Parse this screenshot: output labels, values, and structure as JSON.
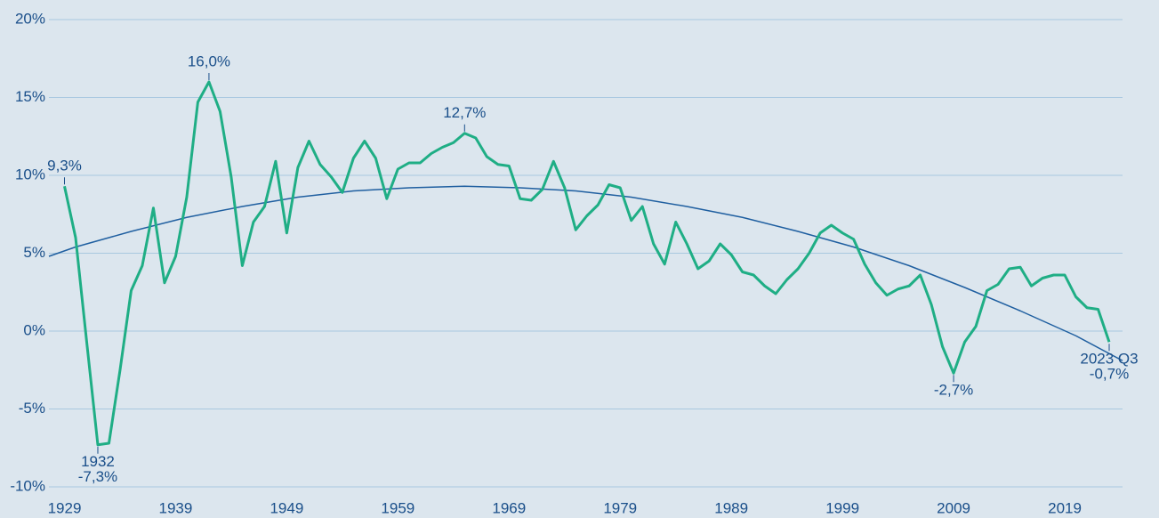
{
  "chart_data": {
    "type": "line",
    "x": [
      1929,
      1930,
      1931,
      1932,
      1933,
      1934,
      1935,
      1936,
      1937,
      1938,
      1939,
      1940,
      1941,
      1942,
      1943,
      1944,
      1945,
      1946,
      1947,
      1948,
      1949,
      1950,
      1951,
      1952,
      1953,
      1954,
      1955,
      1956,
      1957,
      1958,
      1959,
      1960,
      1961,
      1962,
      1963,
      1964,
      1965,
      1966,
      1967,
      1968,
      1969,
      1970,
      1971,
      1972,
      1973,
      1974,
      1975,
      1976,
      1977,
      1978,
      1979,
      1980,
      1981,
      1982,
      1983,
      1984,
      1985,
      1986,
      1987,
      1988,
      1989,
      1990,
      1991,
      1992,
      1993,
      1994,
      1995,
      1996,
      1997,
      1998,
      1999,
      2000,
      2001,
      2002,
      2003,
      2004,
      2005,
      2006,
      2007,
      2008,
      2009,
      2010,
      2011,
      2012,
      2013,
      2014,
      2015,
      2016,
      2017,
      2018,
      2019,
      2020,
      2021,
      2022,
      2023
    ],
    "series": [
      {
        "color": "#1fae85",
        "values": [
          9.3,
          6.0,
          -0.7,
          -7.3,
          -7.2,
          -2.5,
          2.6,
          4.2,
          7.9,
          3.1,
          4.8,
          8.6,
          14.7,
          16.0,
          14.1,
          9.9,
          4.2,
          7.0,
          8.0,
          10.9,
          6.3,
          10.5,
          12.2,
          10.7,
          9.9,
          8.9,
          11.1,
          12.2,
          11.1,
          8.5,
          10.4,
          10.8,
          10.8,
          11.4,
          11.8,
          12.1,
          12.7,
          12.4,
          11.2,
          10.7,
          10.6,
          8.5,
          8.4,
          9.1,
          10.9,
          9.2,
          6.5,
          7.4,
          8.1,
          9.4,
          9.2,
          7.1,
          8.0,
          5.6,
          4.3,
          7.0,
          5.6,
          4.0,
          4.5,
          5.6,
          4.9,
          3.8,
          3.6,
          2.9,
          2.4,
          3.3,
          4.0,
          5.0,
          6.3,
          6.8,
          6.3,
          5.9,
          4.3,
          3.1,
          2.3,
          2.7,
          2.9,
          3.6,
          1.7,
          -1.0,
          -2.7,
          -0.7,
          0.3,
          2.6,
          3.0,
          4.0,
          4.1,
          2.9,
          3.4,
          3.6,
          3.6,
          2.2,
          1.5,
          1.4,
          -0.7
        ],
        "value_labels": [
          "9,3%",
          null,
          null,
          "-7,3%",
          null,
          null,
          null,
          null,
          null,
          null,
          null,
          null,
          null,
          "16,0%",
          null,
          null,
          null,
          null,
          null,
          null,
          null,
          null,
          null,
          null,
          null,
          null,
          null,
          null,
          null,
          null,
          null,
          null,
          null,
          null,
          null,
          null,
          "12,7%",
          null,
          null,
          null,
          null,
          null,
          null,
          null,
          null,
          null,
          null,
          null,
          null,
          null,
          null,
          null,
          null,
          null,
          null,
          null,
          null,
          null,
          null,
          null,
          null,
          null,
          null,
          null,
          null,
          null,
          null,
          null,
          null,
          null,
          null,
          null,
          null,
          null,
          null,
          null,
          null,
          null,
          null,
          null,
          "-2,7%",
          null,
          null,
          null,
          null,
          null,
          null,
          null,
          null,
          null,
          null,
          null,
          null,
          null,
          "-0,7%"
        ]
      }
    ],
    "trend": {
      "color": "#1f5fa0",
      "x": [
        1927.6,
        1930,
        1935,
        1940,
        1945,
        1950,
        1955,
        1960,
        1965,
        1970,
        1975,
        1980,
        1985,
        1990,
        1995,
        2000,
        2005,
        2010,
        2015,
        2020,
        2024.2
      ],
      "values": [
        4.8,
        5.4,
        6.4,
        7.3,
        8.0,
        8.6,
        9.0,
        9.2,
        9.3,
        9.2,
        9.0,
        8.6,
        8.0,
        7.3,
        6.4,
        5.4,
        4.2,
        2.8,
        1.3,
        -0.3,
        -1.9
      ]
    },
    "annotations": [
      {
        "text": "1932",
        "x": 1932
      },
      {
        "text": "2023 Q3",
        "x": 2023
      }
    ],
    "xlim": [
      1927.6,
      2024.2
    ],
    "xticks": [
      1929,
      1939,
      1949,
      1959,
      1969,
      1979,
      1989,
      1999,
      2009,
      2019
    ],
    "ylim": [
      -10,
      20
    ],
    "yticks": [
      {
        "value": -10,
        "label": "-10%"
      },
      {
        "value": -5,
        "label": "-5%"
      },
      {
        "value": 0,
        "label": "0%"
      },
      {
        "value": 5,
        "label": "5%"
      },
      {
        "value": 10,
        "label": "10%"
      },
      {
        "value": 15,
        "label": "15%"
      },
      {
        "value": 20,
        "label": "20%"
      }
    ],
    "grid": true
  }
}
